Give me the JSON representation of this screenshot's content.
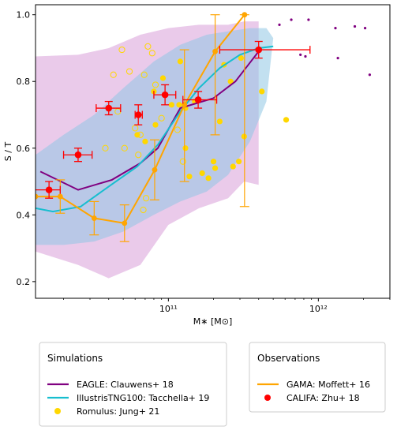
{
  "chart_data": {
    "type": "line",
    "xlabel": "M∗ [M⊙]",
    "ylabel": "S / T",
    "xscale": "log",
    "xlim": [
      13000000000.0,
      3000000000000.0
    ],
    "ylim": [
      0.15,
      1.03
    ],
    "xticks": [
      {
        "value": 100000000000.0,
        "label": "10¹¹"
      },
      {
        "value": 1000000000000.0,
        "label": "10¹²"
      }
    ],
    "yticks": [
      0.2,
      0.4,
      0.6,
      0.8,
      1.0
    ],
    "ytick_labels": [
      "0.2",
      "0.4",
      "0.6",
      "0.8",
      "1.0"
    ],
    "grid": false,
    "colors": {
      "eagle": "#800080",
      "tng": "#17becf",
      "romulus": "#ffd700",
      "gama": "#ffa500",
      "califa": "#ff0000",
      "tng_band": "#8fc7e3",
      "eagle_band": "#d99fd9"
    },
    "bands": {
      "eagle": {
        "x": [
          13000000000.0,
          25000000000.0,
          40000000000.0,
          65000000000.0,
          100000000000.0,
          160000000000.0,
          250000000000.0,
          320000000000.0,
          370000000000.0,
          400000000000.0,
          400000000000.0,
          320000000000.0,
          250000000000.0,
          160000000000.0,
          100000000000.0,
          65000000000.0,
          40000000000.0,
          25000000000.0,
          13000000000.0
        ],
        "y": [
          0.875,
          0.88,
          0.9,
          0.94,
          0.96,
          0.97,
          0.97,
          0.98,
          0.98,
          0.98,
          0.49,
          0.5,
          0.45,
          0.42,
          0.37,
          0.25,
          0.21,
          0.25,
          0.29
        ]
      },
      "tng": {
        "x": [
          13000000000.0,
          20000000000.0,
          32000000000.0,
          50000000000.0,
          80000000000.0,
          120000000000.0,
          180000000000.0,
          250000000000.0,
          350000000000.0,
          450000000000.0,
          500000000000.0,
          450000000000.0,
          350000000000.0,
          250000000000.0,
          180000000000.0,
          120000000000.0,
          80000000000.0,
          50000000000.0,
          32000000000.0,
          20000000000.0,
          13000000000.0
        ],
        "y": [
          0.58,
          0.64,
          0.7,
          0.78,
          0.86,
          0.91,
          0.94,
          0.95,
          0.96,
          0.96,
          0.93,
          0.74,
          0.62,
          0.52,
          0.47,
          0.44,
          0.4,
          0.35,
          0.32,
          0.31,
          0.31
        ]
      }
    },
    "series": [
      {
        "name": "EAGLE: Clauwens+ 18",
        "kind": "line",
        "x": [
          14000000000.0,
          25000000000.0,
          42000000000.0,
          65000000000.0,
          85000000000.0,
          120000000000.0,
          200000000000.0,
          280000000000.0,
          400000000000.0
        ],
        "y": [
          0.53,
          0.475,
          0.505,
          0.555,
          0.6,
          0.72,
          0.75,
          0.8,
          0.89
        ]
      },
      {
        "name": "IllustrisTNG100: Tacchella+ 19",
        "kind": "line",
        "x": [
          13000000000.0,
          17000000000.0,
          26000000000.0,
          40000000000.0,
          62000000000.0,
          85000000000.0,
          120000000000.0,
          160000000000.0,
          220000000000.0,
          300000000000.0,
          400000000000.0,
          500000000000.0
        ],
        "y": [
          0.42,
          0.41,
          0.425,
          0.485,
          0.545,
          0.61,
          0.71,
          0.78,
          0.84,
          0.88,
          0.9,
          0.905
        ]
      },
      {
        "name": "GAMA: Moffett+ 16",
        "kind": "errorbar-line",
        "x": [
          13000000000.0,
          19000000000.0,
          32000000000.0,
          51000000000.0,
          81000000000.0,
          128000000000.0,
          205000000000.0,
          322000000000.0
        ],
        "y": [
          0.455,
          0.455,
          0.39,
          0.375,
          0.535,
          0.73,
          0.89,
          1.0
        ],
        "yerr_low": [
          0.455,
          0.405,
          0.34,
          0.32,
          0.445,
          0.5,
          0.64,
          0.425
        ],
        "yerr_high": [
          0.455,
          0.505,
          0.44,
          0.43,
          0.625,
          0.895,
          1.0,
          1.0
        ]
      },
      {
        "name": "CALIFA: Zhu+ 18",
        "kind": "errorbar-points",
        "x": [
          16000000000.0,
          25000000000.0,
          40000000000.0,
          63000000000.0,
          95000000000.0,
          158000000000.0,
          400000000000.0
        ],
        "y": [
          0.475,
          0.58,
          0.72,
          0.7,
          0.76,
          0.745,
          0.895
        ],
        "xerr_low": [
          12000000000.0,
          20000000000.0,
          33000000000.0,
          60000000000.0,
          80000000000.0,
          125000000000.0,
          220000000000.0
        ],
        "xerr_high": [
          19000000000.0,
          31000000000.0,
          48000000000.0,
          67000000000.0,
          112000000000.0,
          210000000000.0,
          880000000000.0
        ],
        "yerr_low": [
          0.45,
          0.56,
          0.7,
          0.67,
          0.73,
          0.72,
          0.87
        ],
        "yerr_high": [
          0.5,
          0.6,
          0.74,
          0.73,
          0.79,
          0.77,
          0.92
        ]
      },
      {
        "name": "Romulus: Jung+ 21",
        "kind": "scatter",
        "filled_x": [
          62000000000.0,
          70000000000.0,
          82000000000.0,
          92000000000.0,
          105000000000.0,
          120000000000.0,
          130000000000.0,
          138000000000.0,
          150000000000.0,
          168000000000.0,
          185000000000.0,
          205000000000.0,
          235000000000.0,
          260000000000.0,
          295000000000.0,
          305000000000.0,
          320000000000.0,
          420000000000.0,
          610000000000.0,
          80000000000.0,
          130000000000.0,
          200000000000.0,
          220000000000.0,
          118000000000.0,
          270000000000.0
        ],
        "filled_y": [
          0.64,
          0.62,
          0.67,
          0.81,
          0.73,
          0.86,
          0.72,
          0.515,
          0.74,
          0.525,
          0.51,
          0.54,
          0.85,
          0.8,
          0.56,
          0.87,
          0.635,
          0.77,
          0.685,
          0.77,
          0.6,
          0.56,
          0.68,
          0.73,
          0.545
        ],
        "open_x": [
          38000000000.0,
          43000000000.0,
          49000000000.0,
          55000000000.0,
          60000000000.0,
          63000000000.0,
          69000000000.0,
          73000000000.0,
          78000000000.0,
          46000000000.0,
          51000000000.0,
          65000000000.0,
          71000000000.0,
          82000000000.0,
          90000000000.0,
          115000000000.0,
          125000000000.0,
          68000000000.0
        ],
        "open_y": [
          0.6,
          0.82,
          0.895,
          0.83,
          0.66,
          0.58,
          0.82,
          0.905,
          0.885,
          0.71,
          0.6,
          0.64,
          0.45,
          0.79,
          0.69,
          0.655,
          0.56,
          0.415
        ]
      },
      {
        "name": "EAGLE extra points",
        "kind": "scatter-small",
        "x": [
          550000000000.0,
          660000000000.0,
          760000000000.0,
          820000000000.0,
          860000000000.0,
          1300000000000.0,
          1350000000000.0,
          1750000000000.0,
          2050000000000.0,
          2200000000000.0
        ],
        "y": [
          0.97,
          0.985,
          0.88,
          0.875,
          0.985,
          0.96,
          0.87,
          0.965,
          0.96,
          0.82
        ]
      }
    ],
    "legends": [
      {
        "title": "Simulations",
        "entries": [
          {
            "label": "EAGLE: Clauwens+ 18",
            "marker": "line",
            "color": "#800080"
          },
          {
            "label": "IllustrisTNG100: Tacchella+ 19",
            "marker": "line",
            "color": "#17becf"
          },
          {
            "label": "Romulus: Jung+ 21",
            "marker": "dot",
            "color": "#ffd700"
          }
        ]
      },
      {
        "title": "Observations",
        "entries": [
          {
            "label": "GAMA: Moffett+ 16",
            "marker": "line",
            "color": "#ffa500"
          },
          {
            "label": "CALIFA: Zhu+ 18",
            "marker": "dot",
            "color": "#ff0000"
          }
        ]
      }
    ]
  }
}
